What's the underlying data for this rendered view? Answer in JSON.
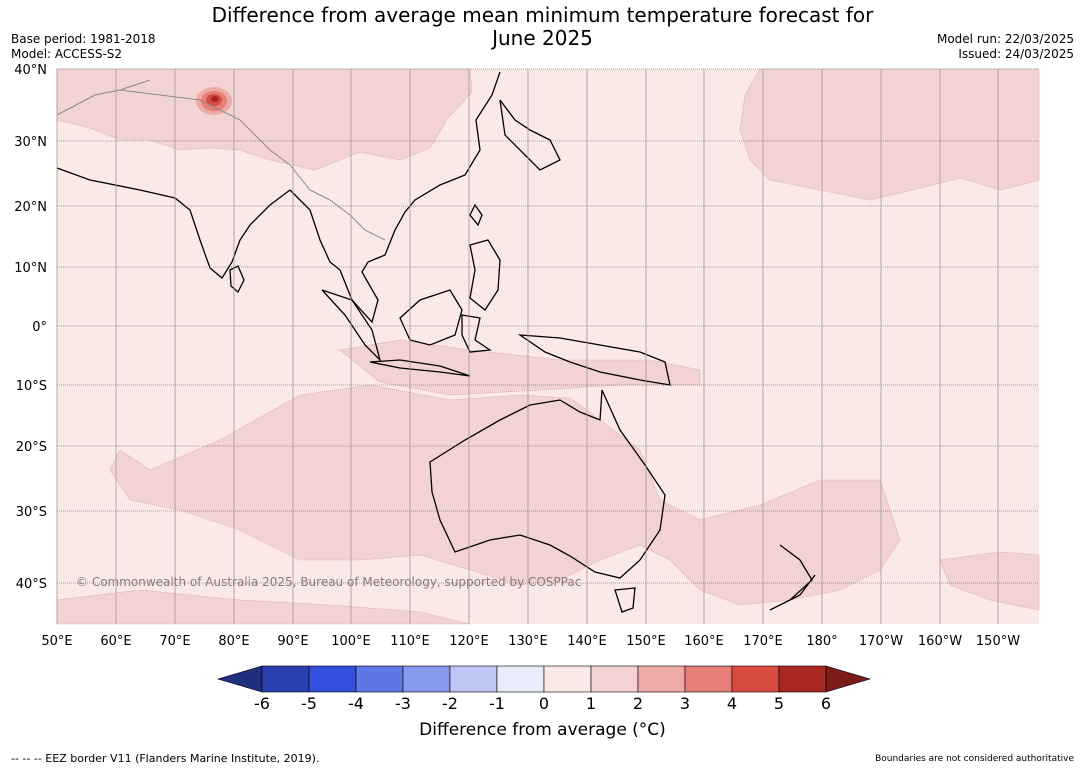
{
  "title_line1": "Difference from average mean minimum temperature forecast for",
  "title_line2": "June 2025",
  "base_period": "Base period: 1981-2018",
  "model": "Model: ACCESS-S2",
  "model_run": "Model run: 22/03/2025",
  "issued": "Issued: 24/03/2025",
  "copyright": "© Commonwealth of Australia 2025, Bureau of Meteorology, supported by COSPPac",
  "lat_labels": [
    "40°N",
    "30°N",
    "20°N",
    "10°N",
    "0°",
    "10°S",
    "20°S",
    "30°S",
    "40°S"
  ],
  "lon_labels": [
    "50°E",
    "60°E",
    "70°E",
    "80°E",
    "90°E",
    "100°E",
    "110°E",
    "120°E",
    "130°E",
    "140°E",
    "150°E",
    "160°E",
    "170°E",
    "180°",
    "170°W",
    "160°W",
    "150°W"
  ],
  "colorbar": {
    "ticks": [
      "-6",
      "-5",
      "-4",
      "-3",
      "-2",
      "-1",
      "0",
      "1",
      "2",
      "3",
      "4",
      "5",
      "6"
    ],
    "colors": [
      "#1f2f7e",
      "#2a3fb0",
      "#3150dd",
      "#5f76e6",
      "#8799ec",
      "#bfc6f3",
      "#e9ecfb",
      "#fbe9e8",
      "#f3d3d2",
      "#edaaa7",
      "#e57f78",
      "#d94a40",
      "#a92822",
      "#7b1a16"
    ],
    "label": "Difference from average (°C)"
  },
  "footer_left": "--  --  -- EEZ border V11 (Flanders Marine Institute, 2019).",
  "footer_right": "Boundaries are not considered authoritative"
}
